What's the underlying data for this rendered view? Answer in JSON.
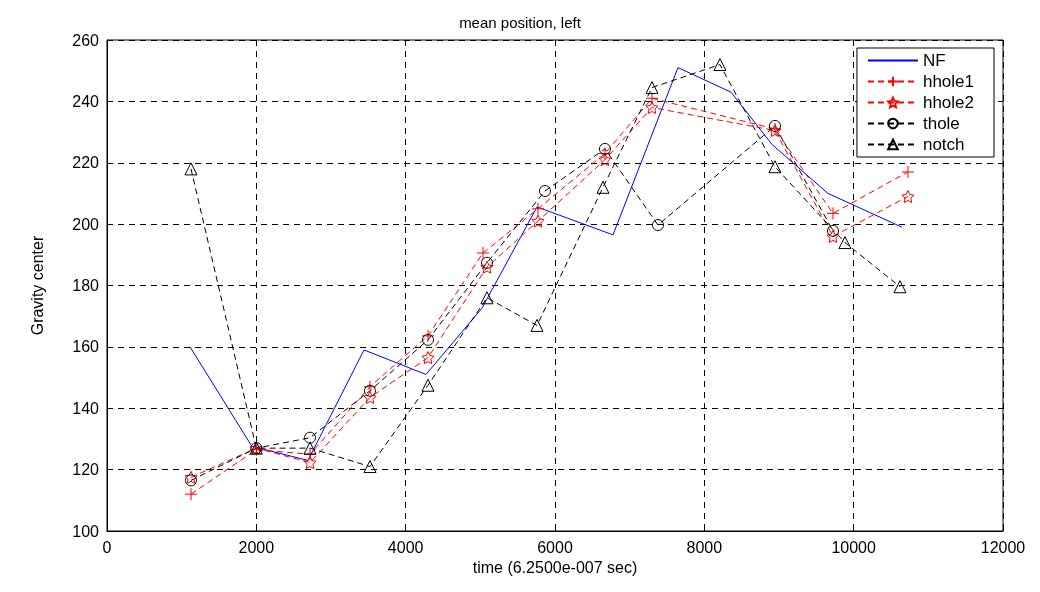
{
  "chart_data": {
    "type": "line",
    "title": "mean position, left",
    "xlabel": "time (6.2500e-007 sec)",
    "ylabel": "Gravity center",
    "xlim": [
      0,
      12000
    ],
    "xticks": [
      0,
      2000,
      4000,
      6000,
      8000,
      10000,
      12000
    ],
    "ylim": [
      100,
      260
    ],
    "yticks": [
      100,
      120,
      140,
      160,
      180,
      200,
      220,
      240,
      260
    ],
    "grid": true,
    "legend": "top right",
    "series": [
      {
        "name": "NF",
        "color": "#0000ff",
        "marker": "none",
        "line_style": "solid",
        "x": [
          1112,
          1940,
          2692,
          3442,
          4272,
          5022,
          5759,
          6777,
          7647,
          8357,
          8905,
          9656,
          10647
        ],
        "values": [
          160,
          127.6,
          123,
          159,
          151,
          172.6,
          205.6,
          196.5,
          251,
          243,
          226,
          210,
          199
        ]
      },
      {
        "name": "hhole1",
        "color": "#ff0000",
        "marker": "cross",
        "line_style": "dashed",
        "x": [
          1125,
          2000,
          2719,
          3522,
          4299,
          5036,
          5772,
          6669,
          7299,
          8946,
          9723,
          10727
        ],
        "values": [
          112,
          126.5,
          125,
          147,
          163.6,
          190.6,
          205,
          223,
          241,
          231,
          203.5,
          217
        ]
      },
      {
        "name": "hhole2",
        "color": "#ff0000",
        "marker": "star",
        "line_style": "dashed",
        "x": [
          1125,
          2000,
          2719,
          3522,
          4299,
          5089,
          5772,
          6669,
          7299,
          8946,
          9723,
          10727
        ],
        "values": [
          117.5,
          127,
          122.3,
          143.5,
          156.5,
          186,
          201,
          221,
          238,
          230.5,
          196,
          209
        ]
      },
      {
        "name": "thole",
        "color": "#000000",
        "marker": "circle",
        "line_style": "dashed",
        "x": [
          1125,
          2000,
          2719,
          3522,
          4299,
          5089,
          5866,
          6669,
          7379,
          8946,
          9723
        ],
        "values": [
          116.5,
          127,
          130.4,
          145.7,
          162.3,
          187.4,
          210.8,
          224.5,
          199.7,
          232,
          197.8
        ]
      },
      {
        "name": "notch",
        "color": "#000000",
        "marker": "triangle",
        "line_style": "dashed",
        "x": [
          1125,
          2000,
          2719,
          3522,
          4299,
          5089,
          5759,
          6643,
          7299,
          8209,
          8946,
          9883,
          10620
        ],
        "values": [
          218,
          127,
          127,
          121,
          147.5,
          176,
          167,
          212,
          244.5,
          252,
          218.7,
          194,
          179.6
        ]
      }
    ]
  }
}
